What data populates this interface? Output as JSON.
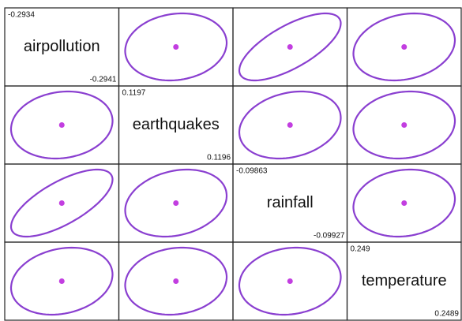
{
  "chart_data": {
    "type": "ellipse-matrix",
    "variables": [
      {
        "name": "airpollution",
        "top": -0.2934,
        "bottom": -0.2941
      },
      {
        "name": "earthquakes",
        "top": 0.1197,
        "bottom": 0.1196
      },
      {
        "name": "rainfall",
        "top": -0.09863,
        "bottom": -0.09927
      },
      {
        "name": "temperature",
        "top": 0.249,
        "bottom": 0.2489
      }
    ],
    "correlations": [
      [
        null,
        0.12,
        0.7,
        0.2
      ],
      [
        0.12,
        null,
        0.22,
        0.12
      ],
      [
        0.7,
        0.22,
        null,
        0.12
      ],
      [
        0.2,
        0.12,
        0.12,
        null
      ]
    ],
    "color": "#8a3fd0"
  }
}
